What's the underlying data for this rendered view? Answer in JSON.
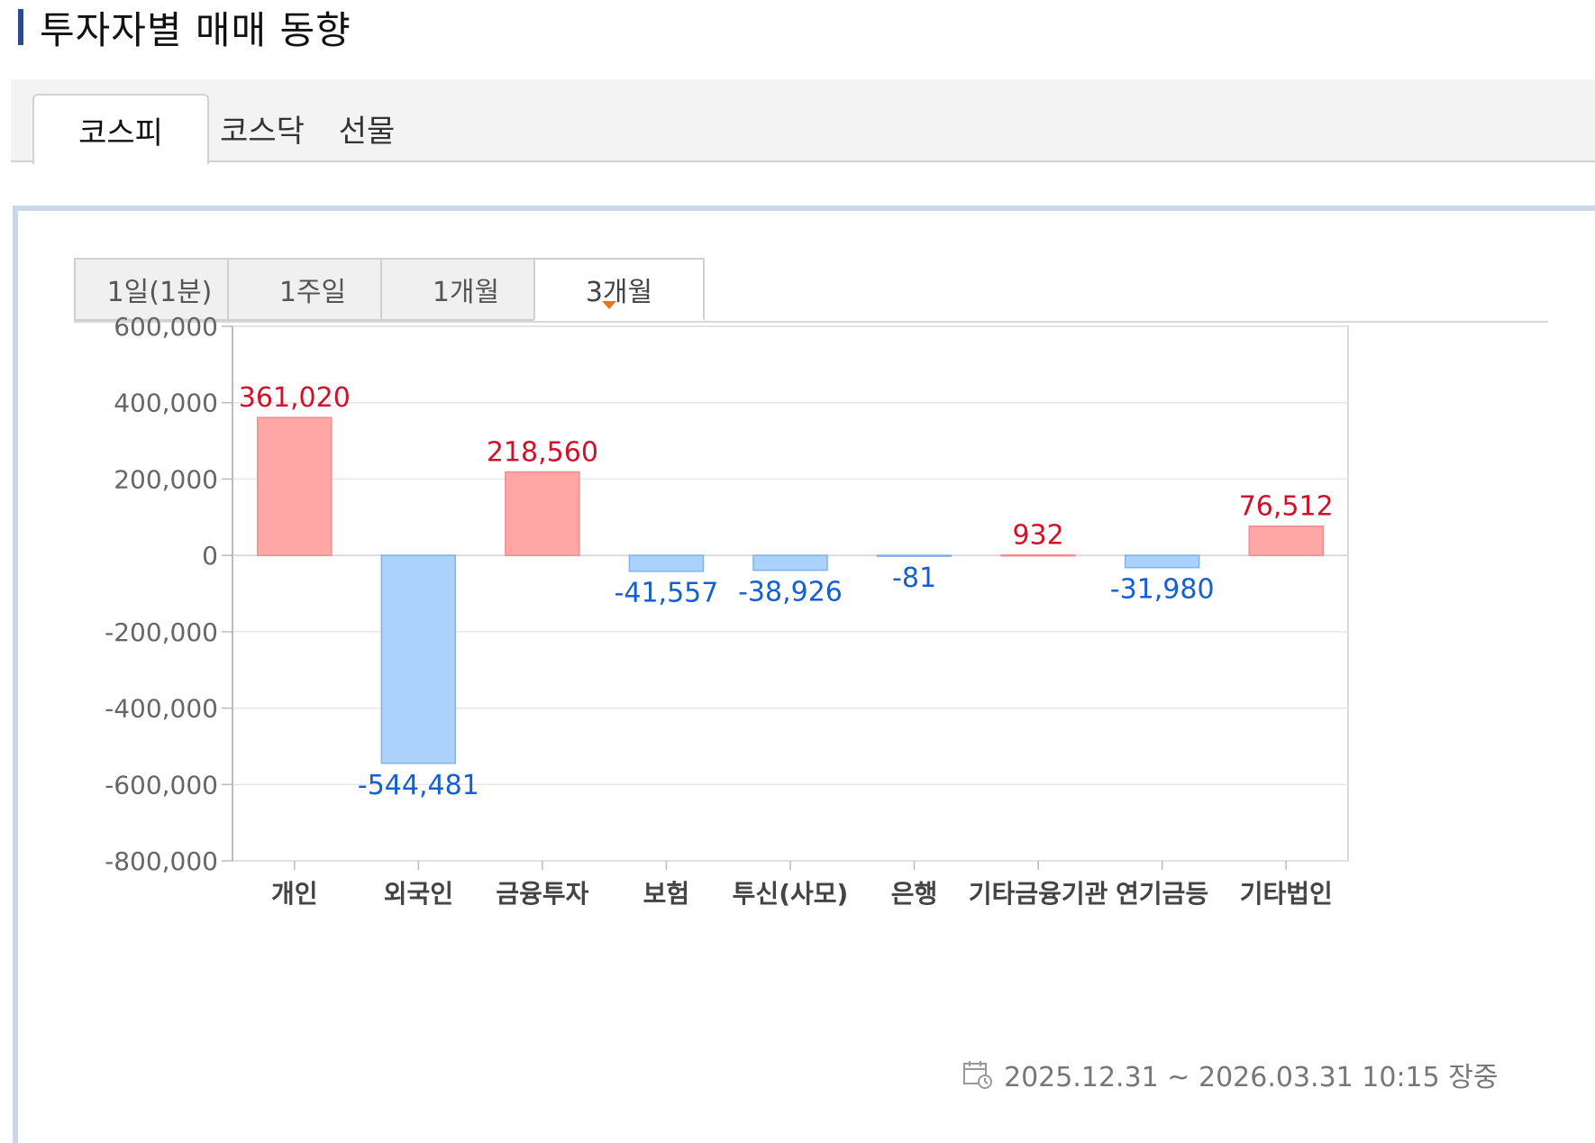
{
  "title": "투자자별 매매 동향",
  "market_tabs": [
    {
      "label": "코스피",
      "active": true
    },
    {
      "label": "코스닥",
      "active": false
    },
    {
      "label": "선물",
      "active": false
    }
  ],
  "period_tabs": [
    {
      "label": "1일(1분)",
      "active": false
    },
    {
      "label": "1주일",
      "active": false
    },
    {
      "label": "1개월",
      "active": false
    },
    {
      "label": "3개월",
      "active": true
    }
  ],
  "footer": {
    "period_text": "2025.12.31 ~ 2026.03.31 10:15 장중",
    "icon": "calendar-clock-icon"
  },
  "colors": {
    "positive_bar": "#ffa7a7",
    "positive_bar_border": "#f08c8c",
    "positive_label": "#d3102a",
    "negative_bar": "#aad2fd",
    "negative_bar_border": "#7fb3ea",
    "negative_label": "#1460d2",
    "title_accent": "#2b4a8f",
    "tab_marker": "#e8761e"
  },
  "chart_data": {
    "type": "bar",
    "categories": [
      "개인",
      "외국인",
      "금융투자",
      "보험",
      "투신(사모)",
      "은행",
      "기타금융기관",
      "연기금등",
      "기타법인"
    ],
    "values": [
      361020,
      -544481,
      218560,
      -41557,
      -38926,
      -81,
      932,
      -31980,
      76512
    ],
    "value_labels": [
      "361,020",
      "-544,481",
      "218,560",
      "-41,557",
      "-38,926",
      "-81",
      "932",
      "-31,980",
      "76,512"
    ],
    "ylim": [
      -800000,
      600000
    ],
    "yticks": [
      600000,
      400000,
      200000,
      0,
      -200000,
      -400000,
      -600000,
      -800000
    ],
    "ytick_labels": [
      "600,000",
      "400,000",
      "200,000",
      "0",
      "-200,000",
      "-400,000",
      "-600,000",
      "-800,000"
    ],
    "grid": true,
    "legend": "none"
  }
}
